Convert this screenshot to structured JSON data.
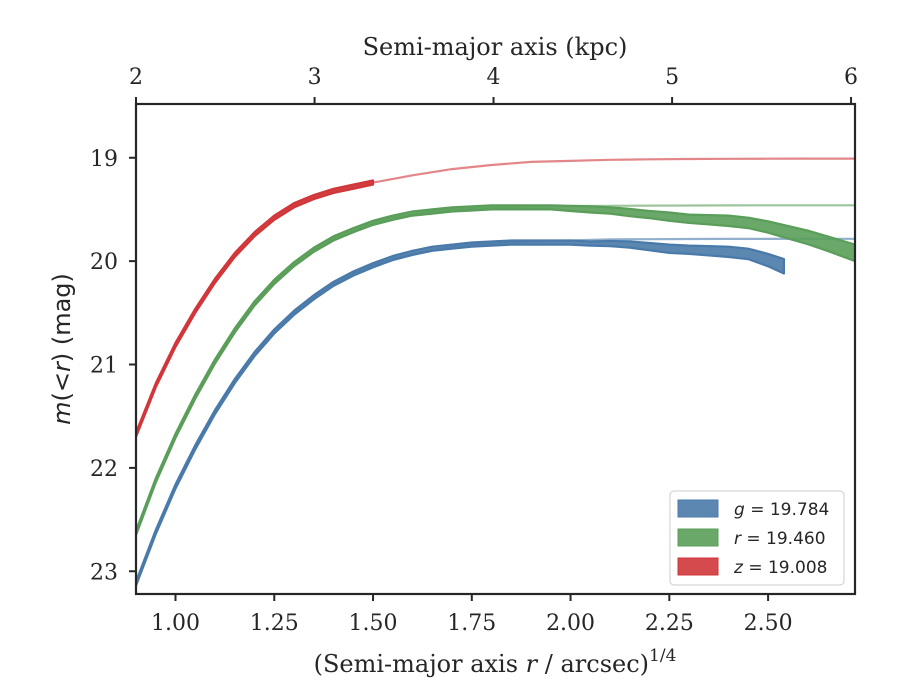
{
  "chart_data": {
    "type": "line",
    "xlabel": "(Semi-major axis r / arcsec)^1/4",
    "xlabel_parts": {
      "prefix": "(Semi-major axis ",
      "var": "r",
      "mid": " / arcsec)",
      "sup": "1/4"
    },
    "ylabel": "m(<r) (mag)",
    "ylabel_parts": {
      "var": "m",
      "mid": "(<",
      "var2": "r",
      "suffix": ") (mag)"
    },
    "top_xlabel": "Semi-major axis (kpc)",
    "xlim": [
      0.9,
      2.72
    ],
    "ylim": [
      23.22,
      18.48
    ],
    "y_inverted": true,
    "xticks": [
      1.0,
      1.25,
      1.5,
      1.75,
      2.0,
      2.25,
      2.5
    ],
    "xtick_labels": [
      "1.00",
      "1.25",
      "1.50",
      "1.75",
      "2.00",
      "2.25",
      "2.50"
    ],
    "yticks": [
      19,
      20,
      21,
      22,
      23
    ],
    "ytick_labels": [
      "19",
      "20",
      "21",
      "22",
      "23"
    ],
    "top_ticks_kpc": [
      2,
      3,
      4,
      5,
      6
    ],
    "top_tick_labels": [
      "2",
      "3",
      "4",
      "5",
      "6"
    ],
    "top_tick_x_positions": [
      0.9,
      1.352,
      1.805,
      2.257,
      2.71
    ],
    "legend_position": "lower-right",
    "series": [
      {
        "name": "g = 19.784",
        "legend_var": "g",
        "legend_value": "= 19.784",
        "color": "#4a7aa9",
        "model": {
          "x": [
            0.9,
            0.95,
            1.0,
            1.05,
            1.1,
            1.15,
            1.2,
            1.25,
            1.3,
            1.35,
            1.4,
            1.45,
            1.5,
            1.55,
            1.6,
            1.65,
            1.7,
            1.75,
            1.8,
            1.85,
            1.9,
            2.0,
            2.1,
            2.2,
            2.3,
            2.4,
            2.5,
            2.6,
            2.72
          ],
          "y": [
            23.12,
            22.62,
            22.18,
            21.8,
            21.46,
            21.16,
            20.9,
            20.68,
            20.5,
            20.35,
            20.22,
            20.12,
            20.04,
            19.98,
            19.93,
            19.89,
            19.86,
            19.84,
            19.83,
            19.82,
            19.81,
            19.8,
            19.79,
            19.788,
            19.786,
            19.785,
            19.785,
            19.784,
            19.784
          ]
        },
        "data": {
          "x": [
            0.9,
            0.95,
            1.0,
            1.05,
            1.1,
            1.15,
            1.2,
            1.25,
            1.3,
            1.35,
            1.4,
            1.45,
            1.5,
            1.55,
            1.6,
            1.65,
            1.7,
            1.75,
            1.8,
            1.85,
            1.9,
            1.95,
            2.0,
            2.05,
            2.1,
            2.15,
            2.2,
            2.25,
            2.3,
            2.35,
            2.4,
            2.45,
            2.5,
            2.54
          ],
          "y": [
            23.12,
            22.62,
            22.18,
            21.8,
            21.46,
            21.16,
            20.9,
            20.68,
            20.5,
            20.35,
            20.22,
            20.12,
            20.04,
            19.97,
            19.92,
            19.88,
            19.86,
            19.84,
            19.83,
            19.82,
            19.82,
            19.82,
            19.82,
            19.83,
            19.83,
            19.84,
            19.86,
            19.88,
            19.89,
            19.9,
            19.91,
            19.93,
            19.99,
            20.05
          ],
          "band": [
            0.02,
            0.02,
            0.02,
            0.02,
            0.02,
            0.02,
            0.02,
            0.02,
            0.02,
            0.02,
            0.02,
            0.02,
            0.02,
            0.02,
            0.02,
            0.02,
            0.02,
            0.02,
            0.02,
            0.02,
            0.02,
            0.02,
            0.02,
            0.02,
            0.025,
            0.03,
            0.035,
            0.04,
            0.04,
            0.045,
            0.05,
            0.05,
            0.06,
            0.07
          ]
        }
      },
      {
        "name": "r = 19.460",
        "legend_var": "r",
        "legend_value": "= 19.460",
        "color": "#5a9e5a",
        "model": {
          "x": [
            0.9,
            0.95,
            1.0,
            1.05,
            1.1,
            1.15,
            1.2,
            1.25,
            1.3,
            1.35,
            1.4,
            1.45,
            1.5,
            1.55,
            1.6,
            1.65,
            1.7,
            1.75,
            1.8,
            1.85,
            1.9,
            2.0,
            2.1,
            2.2,
            2.3,
            2.4,
            2.5,
            2.6,
            2.72
          ],
          "y": [
            22.63,
            22.12,
            21.69,
            21.31,
            20.97,
            20.67,
            20.41,
            20.2,
            20.03,
            19.89,
            19.78,
            19.7,
            19.63,
            19.58,
            19.55,
            19.52,
            19.5,
            19.49,
            19.48,
            19.475,
            19.47,
            19.467,
            19.465,
            19.463,
            19.462,
            19.461,
            19.46,
            19.46,
            19.46
          ]
        },
        "data": {
          "x": [
            0.9,
            0.95,
            1.0,
            1.05,
            1.1,
            1.15,
            1.2,
            1.25,
            1.3,
            1.35,
            1.4,
            1.45,
            1.5,
            1.55,
            1.6,
            1.65,
            1.7,
            1.75,
            1.8,
            1.85,
            1.9,
            1.95,
            2.0,
            2.05,
            2.1,
            2.15,
            2.2,
            2.25,
            2.3,
            2.35,
            2.4,
            2.45,
            2.5,
            2.55,
            2.6,
            2.65,
            2.72
          ],
          "y": [
            22.63,
            22.12,
            21.69,
            21.31,
            20.97,
            20.67,
            20.41,
            20.2,
            20.03,
            19.89,
            19.78,
            19.7,
            19.63,
            19.58,
            19.54,
            19.52,
            19.5,
            19.49,
            19.48,
            19.48,
            19.48,
            19.48,
            19.49,
            19.5,
            19.51,
            19.53,
            19.55,
            19.57,
            19.59,
            19.6,
            19.61,
            19.63,
            19.67,
            19.72,
            19.77,
            19.83,
            19.92
          ],
          "band": [
            0.02,
            0.02,
            0.02,
            0.02,
            0.02,
            0.02,
            0.02,
            0.02,
            0.02,
            0.02,
            0.02,
            0.02,
            0.02,
            0.02,
            0.02,
            0.02,
            0.02,
            0.02,
            0.02,
            0.02,
            0.02,
            0.02,
            0.025,
            0.03,
            0.03,
            0.035,
            0.035,
            0.04,
            0.04,
            0.045,
            0.05,
            0.05,
            0.055,
            0.06,
            0.065,
            0.07,
            0.08
          ]
        }
      },
      {
        "name": "z = 19.008",
        "legend_var": "z",
        "legend_value": "= 19.008",
        "color": "#d0363a",
        "model": {
          "x": [
            0.9,
            0.95,
            1.0,
            1.05,
            1.1,
            1.15,
            1.2,
            1.25,
            1.3,
            1.35,
            1.4,
            1.45,
            1.5,
            1.6,
            1.7,
            1.8,
            1.9,
            2.0,
            2.1,
            2.2,
            2.3,
            2.4,
            2.5,
            2.6,
            2.72
          ],
          "y": [
            21.68,
            21.2,
            20.81,
            20.48,
            20.19,
            19.94,
            19.74,
            19.58,
            19.46,
            19.38,
            19.32,
            19.28,
            19.24,
            19.17,
            19.11,
            19.07,
            19.04,
            19.03,
            19.02,
            19.015,
            19.012,
            19.01,
            19.009,
            19.008,
            19.008
          ]
        },
        "data": {
          "x": [
            0.9,
            0.95,
            1.0,
            1.05,
            1.1,
            1.15,
            1.2,
            1.25,
            1.3,
            1.35,
            1.4,
            1.45,
            1.5
          ],
          "y": [
            21.68,
            21.2,
            20.81,
            20.48,
            20.19,
            19.94,
            19.74,
            19.58,
            19.46,
            19.38,
            19.32,
            19.28,
            19.24
          ],
          "band": [
            0.02,
            0.02,
            0.02,
            0.02,
            0.02,
            0.02,
            0.02,
            0.02,
            0.02,
            0.02,
            0.02,
            0.02,
            0.02
          ]
        }
      }
    ]
  }
}
